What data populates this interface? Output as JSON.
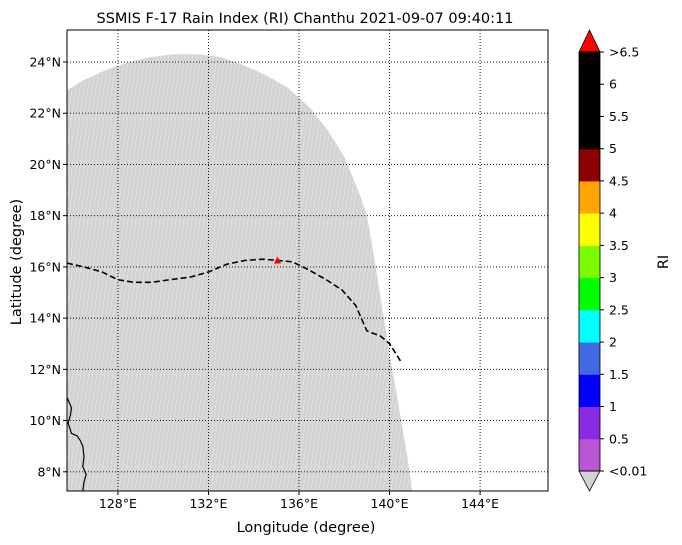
{
  "title": "SSMIS F-17 Rain Index (RI) Chanthu 2021-09-07 09:40:11",
  "xlabel": "Longitude (degree)",
  "ylabel": "Latitude (degree)",
  "colorbar_label": "RI",
  "chart_data": {
    "type": "map",
    "xlim": [
      125.75,
      147.0
    ],
    "ylim": [
      7.25,
      25.25
    ],
    "x_ticks": [
      {
        "value": 128,
        "label": "128°E"
      },
      {
        "value": 132,
        "label": "132°E"
      },
      {
        "value": 136,
        "label": "136°E"
      },
      {
        "value": 140,
        "label": "140°E"
      },
      {
        "value": 144,
        "label": "144°E"
      }
    ],
    "y_ticks": [
      {
        "value": 8,
        "label": "8°N"
      },
      {
        "value": 10,
        "label": "10°N"
      },
      {
        "value": 12,
        "label": "12°N"
      },
      {
        "value": 14,
        "label": "14°N"
      },
      {
        "value": 16,
        "label": "16°N"
      },
      {
        "value": 18,
        "label": "18°N"
      },
      {
        "value": 20,
        "label": "20°N"
      },
      {
        "value": 22,
        "label": "22°N"
      },
      {
        "value": 24,
        "label": "24°N"
      }
    ],
    "swath_color": "#d3d3d3",
    "swath_outline": [
      [
        125.75,
        22.9
      ],
      [
        126.5,
        23.3
      ],
      [
        127.5,
        23.7
      ],
      [
        128.5,
        24.0
      ],
      [
        129.5,
        24.2
      ],
      [
        130.5,
        24.3
      ],
      [
        131.5,
        24.3
      ],
      [
        132.5,
        24.2
      ],
      [
        133.5,
        23.9
      ],
      [
        134.5,
        23.5
      ],
      [
        135.5,
        23.0
      ],
      [
        136.5,
        22.2
      ],
      [
        137.3,
        21.3
      ],
      [
        138.0,
        20.3
      ],
      [
        138.7,
        18.8
      ],
      [
        139.0,
        18.0
      ],
      [
        139.3,
        16.5
      ],
      [
        139.6,
        14.8
      ],
      [
        140.0,
        12.6
      ],
      [
        140.4,
        10.6
      ],
      [
        140.8,
        8.5
      ],
      [
        141.0,
        7.25
      ],
      [
        125.75,
        7.25
      ]
    ],
    "coastline": [
      [
        125.75,
        10.9
      ],
      [
        125.85,
        10.7
      ],
      [
        125.95,
        10.5
      ],
      [
        125.9,
        10.2
      ],
      [
        125.8,
        9.9
      ],
      [
        125.95,
        9.5
      ],
      [
        126.2,
        9.4
      ],
      [
        126.35,
        9.2
      ],
      [
        126.45,
        9.0
      ],
      [
        126.5,
        8.6
      ],
      [
        126.45,
        8.2
      ],
      [
        126.6,
        7.9
      ],
      [
        126.5,
        7.6
      ],
      [
        126.45,
        7.25
      ]
    ],
    "track": {
      "name": "Chanthu track",
      "points": [
        [
          125.75,
          16.15
        ],
        [
          126.5,
          16.0
        ],
        [
          127.3,
          15.8
        ],
        [
          128.0,
          15.5
        ],
        [
          128.7,
          15.4
        ],
        [
          129.5,
          15.4
        ],
        [
          130.3,
          15.5
        ],
        [
          131.2,
          15.6
        ],
        [
          132.0,
          15.8
        ],
        [
          132.8,
          16.1
        ],
        [
          133.6,
          16.25
        ],
        [
          134.4,
          16.3
        ],
        [
          135.1,
          16.25
        ],
        [
          135.7,
          16.2
        ],
        [
          136.4,
          15.9
        ],
        [
          137.2,
          15.5
        ],
        [
          137.9,
          15.1
        ],
        [
          138.5,
          14.5
        ],
        [
          139.0,
          13.5
        ],
        [
          139.6,
          13.3
        ],
        [
          140.0,
          13.0
        ],
        [
          140.5,
          12.3
        ]
      ]
    },
    "storm_position": [
      135.05,
      16.25
    ],
    "storm_marker_color": "#ff0000",
    "colorbar": {
      "over_color": "#ff0000",
      "under_color": "#d3d3d3",
      "colors": [
        "#ba55d3",
        "#8a2be2",
        "#0000ff",
        "#4169e1",
        "#00ffff",
        "#00ff00",
        "#7cfc00",
        "#ffff00",
        "#ffa500",
        "#8b0000",
        "#000000",
        "#000000",
        "#000000"
      ],
      "tick_labels": [
        "<0.01",
        "0.5",
        "1",
        "1.5",
        "2",
        "2.5",
        "3",
        "3.5",
        "4",
        "4.5",
        "5",
        "5.5",
        "6",
        ">6.5"
      ]
    }
  }
}
